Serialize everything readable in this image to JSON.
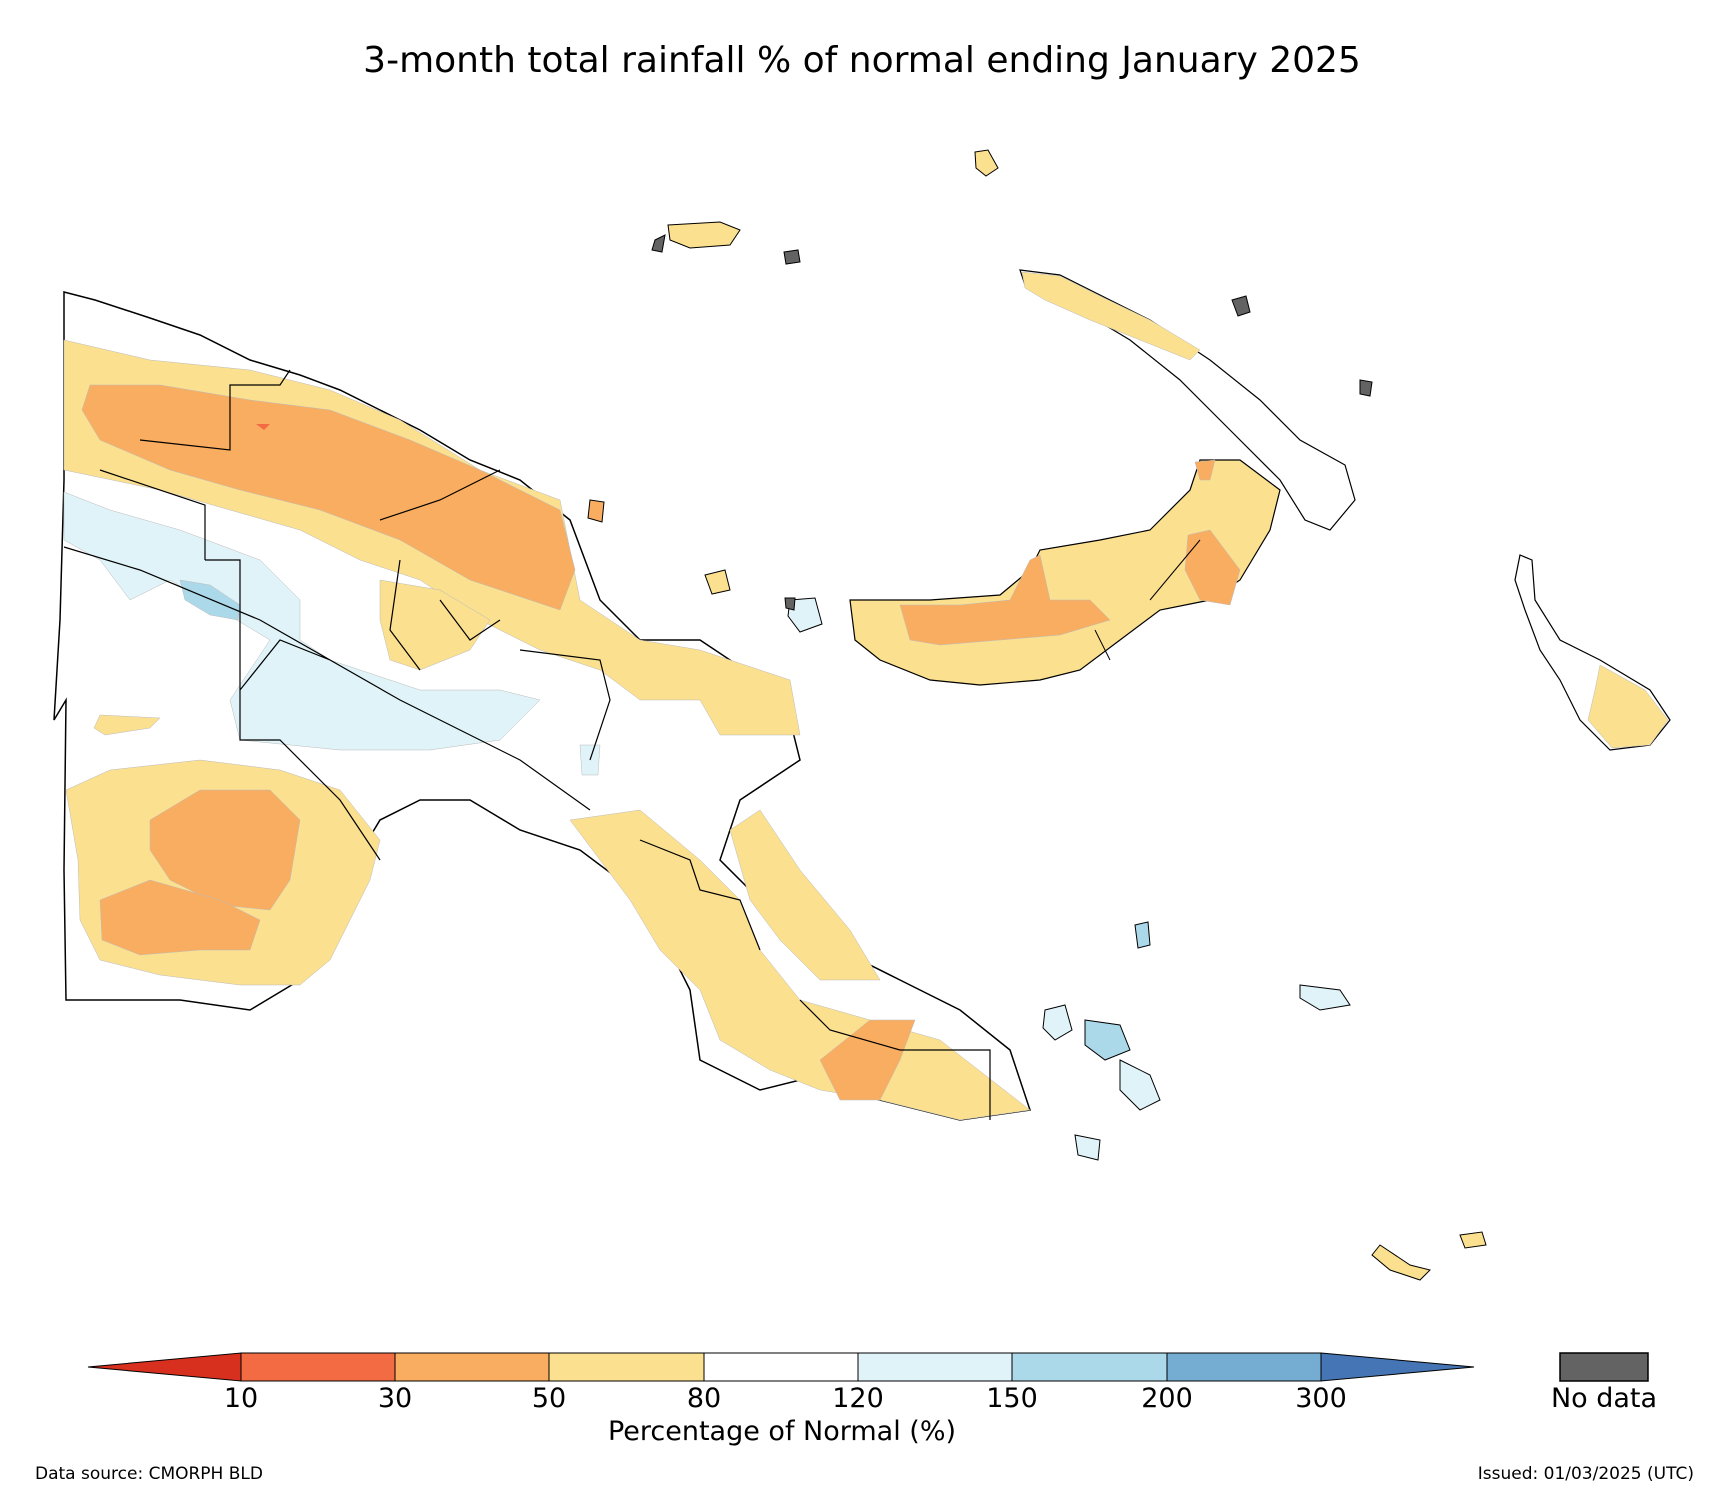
{
  "title": "3-month total rainfall % of normal ending January 2025",
  "colors": {
    "lt10": "#d7301f",
    "c10_30": "#f26b43",
    "c30_50": "#f9ad60",
    "c50_80": "#fbe090",
    "c80_120": "#ffffff",
    "c120_150": "#e0f3f8",
    "c150_200": "#abd9e9",
    "c200_300": "#74add1",
    "gt300": "#4575b4",
    "no_data": "#636363"
  },
  "colorbar": {
    "ticks": [
      "10",
      "30",
      "50",
      "80",
      "120",
      "150",
      "200",
      "300"
    ],
    "label": "Percentage of Normal (%)",
    "no_data_label": "No data"
  },
  "footer": {
    "source": "Data source: CMORPH BLD",
    "issued": "Issued: 01/03/2025 (UTC)"
  }
}
